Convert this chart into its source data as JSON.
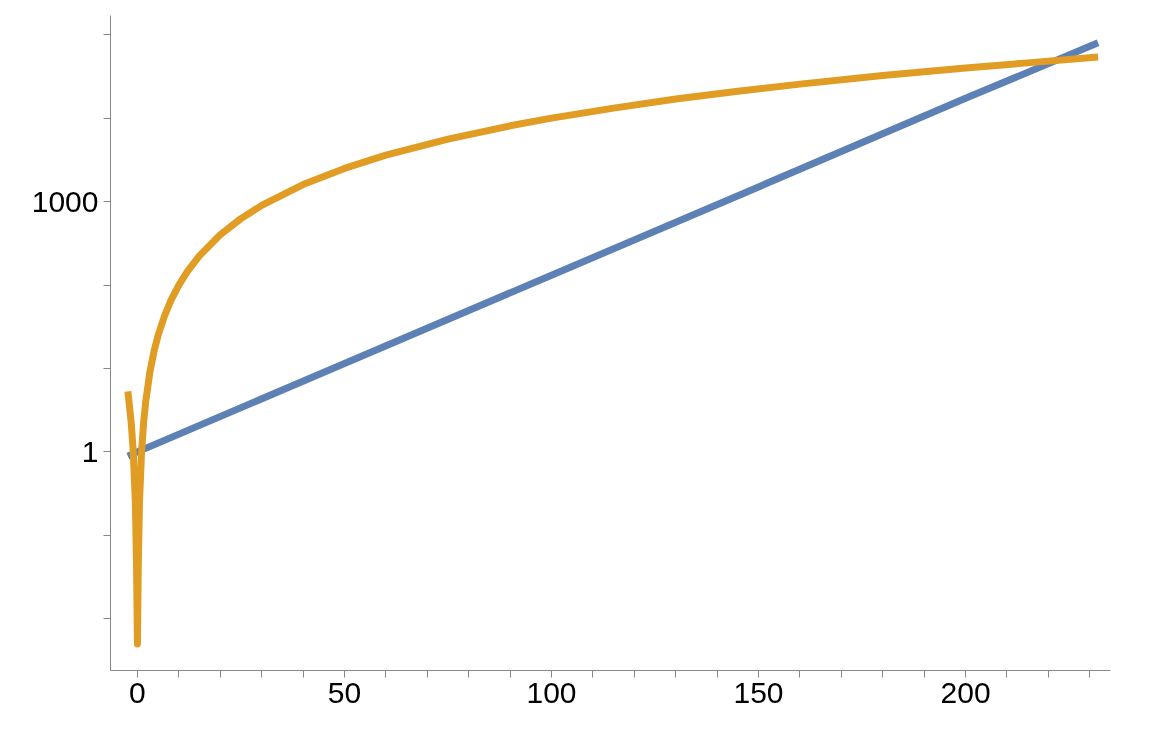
{
  "chart_data": {
    "type": "line",
    "log": "y",
    "grid": false,
    "marker": "none",
    "line_style": "solid",
    "xlim": [
      -6.5,
      235
    ],
    "ylim": [
      0.0024,
      170000
    ],
    "xticks": [
      0,
      {
        "value": 10,
        "label": null
      },
      {
        "value": 20,
        "label": null
      },
      {
        "value": 30,
        "label": null
      },
      {
        "value": 40,
        "label": null
      },
      50,
      {
        "value": 60,
        "label": null
      },
      {
        "value": 70,
        "label": null
      },
      {
        "value": 80,
        "label": null
      },
      {
        "value": 90,
        "label": null
      },
      100,
      {
        "value": 110,
        "label": null
      },
      {
        "value": 120,
        "label": null
      },
      {
        "value": 130,
        "label": null
      },
      {
        "value": 140,
        "label": null
      },
      150,
      {
        "value": 160,
        "label": null
      },
      {
        "value": 170,
        "label": null
      },
      {
        "value": 180,
        "label": null
      },
      {
        "value": 190,
        "label": null
      },
      200,
      {
        "value": 210,
        "label": null
      },
      {
        "value": 220,
        "label": null
      },
      {
        "value": 230,
        "label": null
      }
    ],
    "yticks": [
      {
        "value": 0.01,
        "label": null
      },
      {
        "value": 0.1,
        "label": null
      },
      1,
      {
        "value": 10,
        "label": null
      },
      {
        "value": 100,
        "label": null
      },
      1000,
      {
        "value": 10000,
        "label": null
      },
      {
        "value": 100000,
        "label": null
      }
    ],
    "series": [
      {
        "color": "#5e81b5",
        "x": [
          -2.3,
          0,
          50,
          100,
          150,
          200,
          232
        ],
        "values": [
          0.89,
          1,
          11.5,
          131,
          1500,
          17300,
          80000
        ]
      },
      {
        "color": "#e19c24",
        "x": [
          -2.3,
          -1.5,
          -1,
          -0.5,
          -0.2,
          0,
          0.2,
          0.5,
          1,
          1.5,
          2,
          3,
          4,
          5,
          6.5,
          8,
          10,
          12,
          15,
          20,
          25,
          30,
          40,
          50,
          60,
          75,
          90,
          100,
          115,
          130,
          145,
          160,
          180,
          200,
          215,
          232
        ],
        "values": [
          5.3,
          2.25,
          1,
          0.25,
          0.04,
          0.005,
          0.04,
          0.25,
          1,
          2.25,
          4,
          9,
          16,
          25,
          42,
          64,
          100,
          144,
          225,
          400,
          625,
          900,
          1600,
          2500,
          3600,
          5600,
          8100,
          10000,
          13200,
          17000,
          21000,
          25600,
          32400,
          40000,
          46000,
          54000
        ]
      }
    ]
  }
}
